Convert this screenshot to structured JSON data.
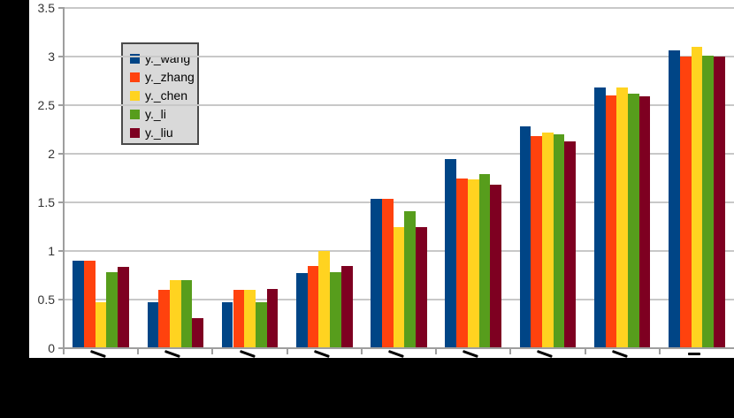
{
  "chart_data": {
    "type": "bar",
    "title": "",
    "xlabel": "",
    "ylabel": "",
    "categories": [
      "",
      "",
      "",
      "",
      "",
      "",
      "",
      "",
      ""
    ],
    "series": [
      {
        "name": "y._wang",
        "color": "#004586",
        "values": [
          0.9,
          0.47,
          0.47,
          0.77,
          1.54,
          1.95,
          2.28,
          2.68,
          3.06
        ]
      },
      {
        "name": "y._zhang",
        "color": "#ff420e",
        "values": [
          0.9,
          0.6,
          0.6,
          0.85,
          1.54,
          1.75,
          2.18,
          2.6,
          3.0
        ]
      },
      {
        "name": "y._chen",
        "color": "#ffd320",
        "values": [
          0.47,
          0.7,
          0.6,
          1.0,
          1.25,
          1.74,
          2.22,
          2.68,
          3.1
        ]
      },
      {
        "name": "y._li",
        "color": "#579d1c",
        "values": [
          0.78,
          0.7,
          0.47,
          0.78,
          1.41,
          1.79,
          2.2,
          2.62,
          3.01
        ]
      },
      {
        "name": "y._liu",
        "color": "#7e0021",
        "values": [
          0.84,
          0.31,
          0.61,
          0.85,
          1.25,
          1.68,
          2.13,
          2.59,
          3.0
        ]
      }
    ],
    "ylim": [
      0,
      3.5
    ],
    "y_tick_step": 0.5,
    "y_tick_labels": [
      "0",
      "0.5",
      "1",
      "1.5",
      "2",
      "2.5",
      "3",
      "3.5"
    ],
    "grid": true,
    "legend_position": "upper-left-inside",
    "x_tick_labels_visible": false
  },
  "colors": {
    "page_background": "#000000",
    "plot_background": "#ffffff",
    "gridline": "#c8c8c8",
    "axis": "#9e9e9e",
    "tick_label": "#333333",
    "legend_background": "#d9d9d9",
    "legend_border": "#4a4a4a",
    "x_label_stub": "#000000"
  }
}
